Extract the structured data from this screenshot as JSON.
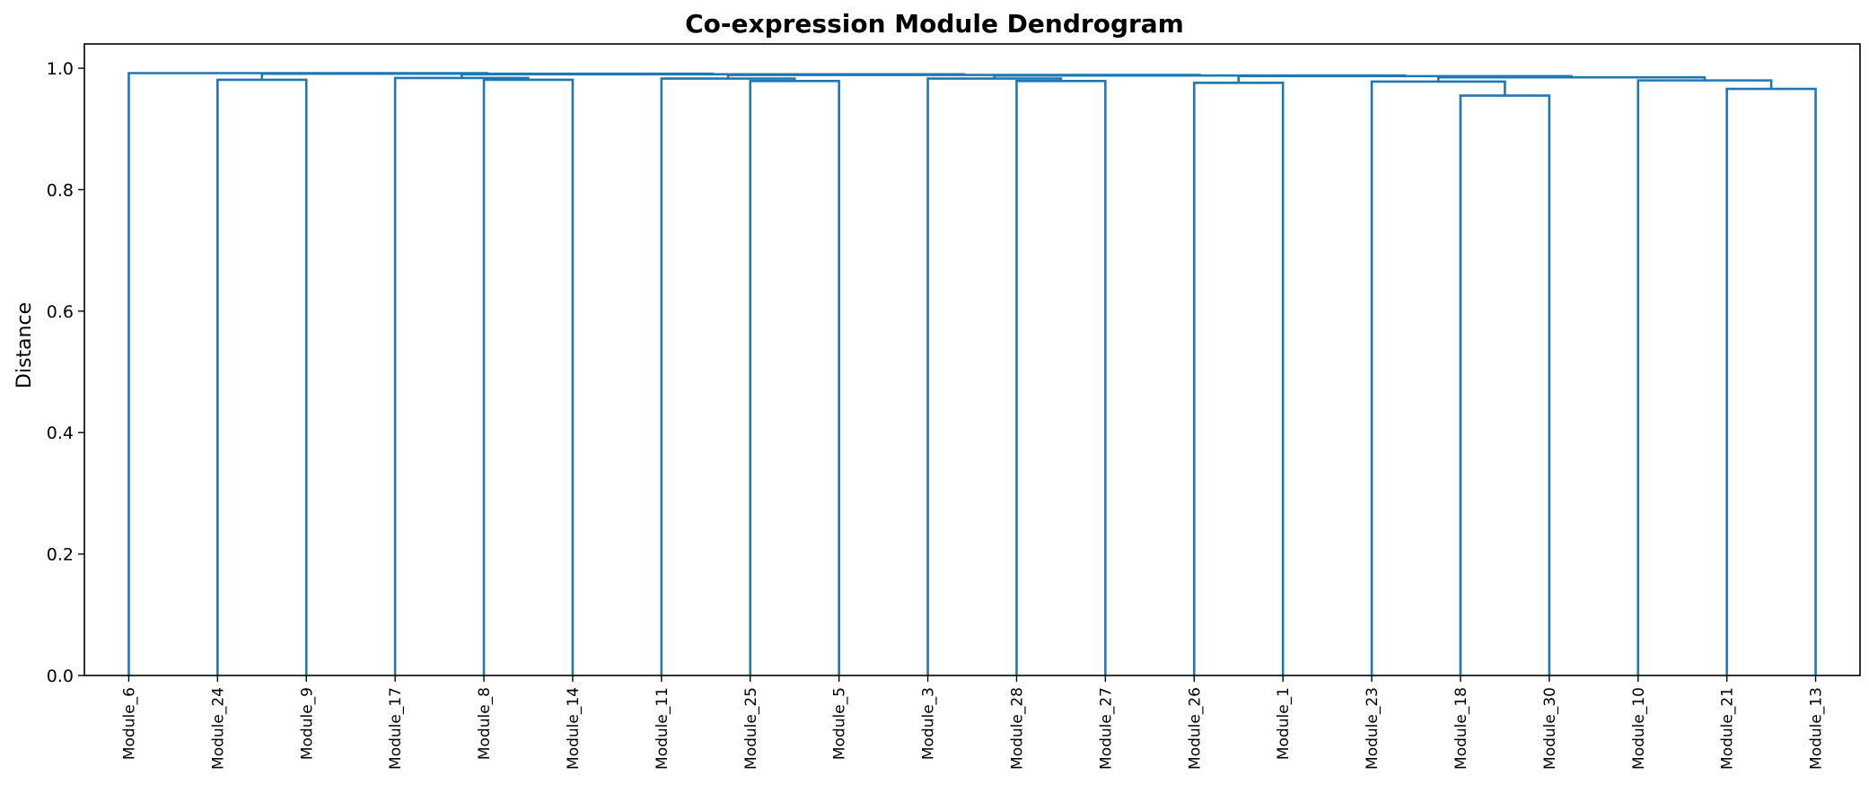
{
  "chart_data": {
    "type": "dendrogram",
    "title": "Co-expression Module Dendrogram",
    "xlabel": "",
    "ylabel": "Distance",
    "ylim": [
      0,
      1.04
    ],
    "yticks": [
      "0.0",
      "0.2",
      "0.4",
      "0.6",
      "0.8",
      "1.0"
    ],
    "grid": false,
    "link_color": "#1f77b4",
    "leaves": [
      "Module_6",
      "Module_24",
      "Module_9",
      "Module_17",
      "Module_8",
      "Module_14",
      "Module_11",
      "Module_25",
      "Module_5",
      "Module_3",
      "Module_28",
      "Module_27",
      "Module_26",
      "Module_1",
      "Module_23",
      "Module_18",
      "Module_30",
      "Module_10",
      "Module_21",
      "Module_13"
    ],
    "merges": [
      {
        "left": "Module_18",
        "right": "Module_30",
        "height": 0.955
      },
      {
        "left": "Module_21",
        "right": "Module_13",
        "height": 0.966
      },
      {
        "left": "Module_26",
        "right": "Module_1",
        "height": 0.976
      },
      {
        "left": "Module_23",
        "right": "(Module_18, Module_30)",
        "height": 0.978
      },
      {
        "left": "Module_25",
        "right": "Module_5",
        "height": 0.979
      },
      {
        "left": "Module_28",
        "right": "Module_27",
        "height": 0.979
      },
      {
        "left": "Module_10",
        "right": "(Module_21, Module_13)",
        "height": 0.98
      },
      {
        "left": "Module_24",
        "right": "Module_9",
        "height": 0.981
      },
      {
        "left": "Module_8",
        "right": "Module_14",
        "height": 0.981
      },
      {
        "left": "Module_11",
        "right": "(Module_25, Module_5)",
        "height": 0.983
      },
      {
        "left": "Module_3",
        "right": "(Module_28, Module_27)",
        "height": 0.983
      },
      {
        "left": "Module_17",
        "right": "(Module_8, Module_14)",
        "height": 0.984
      },
      {
        "left": "(Module_23, ...)",
        "right": "(Module_10, ...)",
        "height": 0.985
      },
      {
        "left": "(Module_26, Module_1)",
        "right": "(Module_23, ... Module_13)",
        "height": 0.987
      },
      {
        "left": "(Module_3, ...)",
        "right": "(Module_26, ... Module_13)",
        "height": 0.988
      },
      {
        "left": "(Module_11, ...)",
        "right": "(Module_3, ... Module_13)",
        "height": 0.989
      },
      {
        "left": "(Module_17, ...)",
        "right": "(Module_11, ... Module_13)",
        "height": 0.99
      },
      {
        "left": "(Module_24, Module_9)",
        "right": "(Module_17, ... Module_13)",
        "height": 0.991
      },
      {
        "left": "Module_6",
        "right": "(Module_24, ... Module_13)",
        "height": 0.992
      }
    ]
  }
}
